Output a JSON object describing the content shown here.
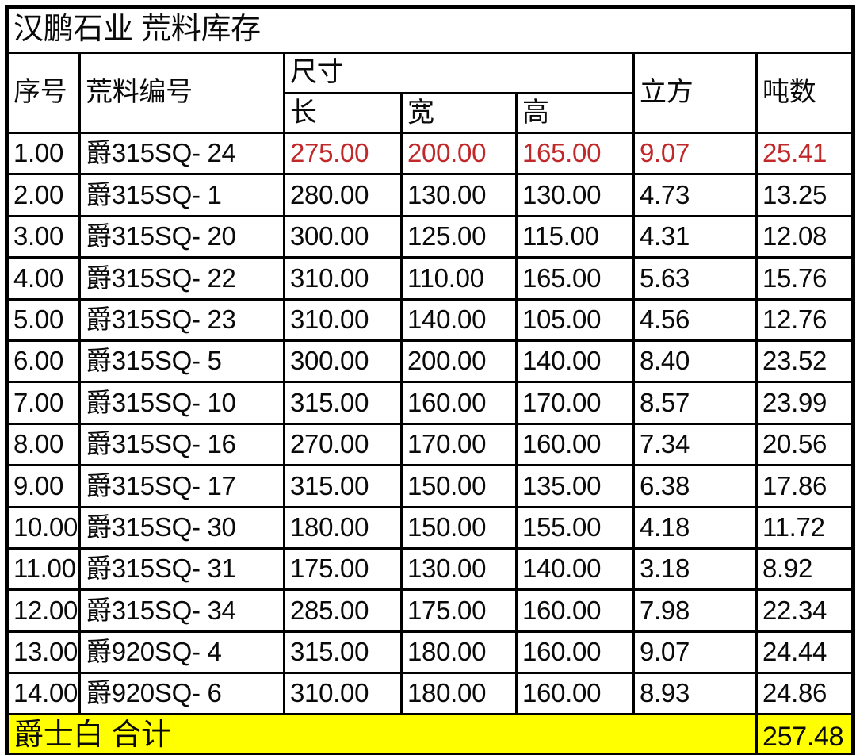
{
  "title": "汉鹏石业 荒料库存",
  "columns": {
    "index": "序号",
    "block_no": "荒料编号",
    "size_group": "尺寸",
    "length": "长",
    "width": "宽",
    "height": "高",
    "volume": "立方",
    "tonnage": "吨数"
  },
  "rows": [
    {
      "index": "1.00",
      "block_no": "爵315SQ- 24",
      "length": "275.00",
      "width": "200.00",
      "height": "165.00",
      "volume": "9.07",
      "tonnage": "25.41",
      "highlight": true
    },
    {
      "index": "2.00",
      "block_no": "爵315SQ- 1",
      "length": "280.00",
      "width": "130.00",
      "height": "130.00",
      "volume": "4.73",
      "tonnage": "13.25",
      "highlight": false
    },
    {
      "index": "3.00",
      "block_no": "爵315SQ- 20",
      "length": "300.00",
      "width": "125.00",
      "height": "115.00",
      "volume": "4.31",
      "tonnage": "12.08",
      "highlight": false
    },
    {
      "index": "4.00",
      "block_no": "爵315SQ- 22",
      "length": "310.00",
      "width": "110.00",
      "height": "165.00",
      "volume": "5.63",
      "tonnage": "15.76",
      "highlight": false
    },
    {
      "index": "5.00",
      "block_no": "爵315SQ- 23",
      "length": "310.00",
      "width": "140.00",
      "height": "105.00",
      "volume": "4.56",
      "tonnage": "12.76",
      "highlight": false
    },
    {
      "index": "6.00",
      "block_no": "爵315SQ- 5",
      "length": "300.00",
      "width": "200.00",
      "height": "140.00",
      "volume": "8.40",
      "tonnage": "23.52",
      "highlight": false
    },
    {
      "index": "7.00",
      "block_no": "爵315SQ- 10",
      "length": "315.00",
      "width": "160.00",
      "height": "170.00",
      "volume": "8.57",
      "tonnage": "23.99",
      "highlight": false
    },
    {
      "index": "8.00",
      "block_no": "爵315SQ- 16",
      "length": "270.00",
      "width": "170.00",
      "height": "160.00",
      "volume": "7.34",
      "tonnage": "20.56",
      "highlight": false
    },
    {
      "index": "9.00",
      "block_no": "爵315SQ- 17",
      "length": "315.00",
      "width": "150.00",
      "height": "135.00",
      "volume": "6.38",
      "tonnage": "17.86",
      "highlight": false
    },
    {
      "index": "10.00",
      "block_no": "爵315SQ- 30",
      "length": "180.00",
      "width": "150.00",
      "height": "155.00",
      "volume": "4.18",
      "tonnage": "11.72",
      "highlight": false
    },
    {
      "index": "11.00",
      "block_no": "爵315SQ- 31",
      "length": "175.00",
      "width": "130.00",
      "height": "140.00",
      "volume": "3.18",
      "tonnage": "8.92",
      "highlight": false
    },
    {
      "index": "12.00",
      "block_no": "爵315SQ- 34",
      "length": "285.00",
      "width": "175.00",
      "height": "160.00",
      "volume": "7.98",
      "tonnage": "22.34",
      "highlight": false
    },
    {
      "index": "13.00",
      "block_no": "爵920SQ- 4",
      "length": "315.00",
      "width": "180.00",
      "height": "160.00",
      "volume": "9.07",
      "tonnage": "24.44",
      "highlight": false
    },
    {
      "index": "14.00",
      "block_no": "爵920SQ- 6",
      "length": "310.00",
      "width": "180.00",
      "height": "160.00",
      "volume": "8.93",
      "tonnage": "24.86",
      "highlight": false
    }
  ],
  "footer": {
    "label": "爵士白 合计",
    "total_tonnage": "257.48"
  },
  "colors": {
    "highlight_text": "#c0282a",
    "footer_bg": "#ffff00",
    "border": "#000000",
    "background": "#ffffff"
  }
}
